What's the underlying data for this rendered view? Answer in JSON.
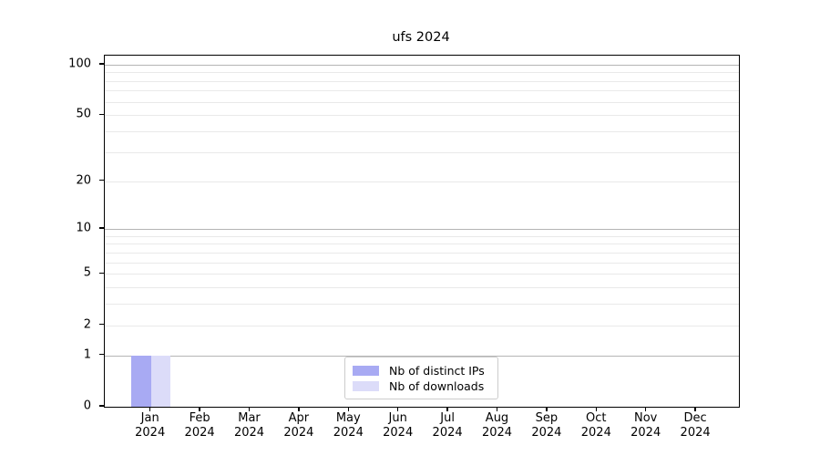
{
  "title": "ufs 2024",
  "chart_data": {
    "type": "bar",
    "title": "ufs 2024",
    "categories": [
      "Jan",
      "Feb",
      "Mar",
      "Apr",
      "May",
      "Jun",
      "Jul",
      "Aug",
      "Sep",
      "Oct",
      "Nov",
      "Dec"
    ],
    "x_sublabel": "2024",
    "series": [
      {
        "name": "Nb of distinct IPs",
        "color": "#a8aaf3",
        "values": [
          1,
          0,
          0,
          0,
          0,
          0,
          0,
          0,
          0,
          0,
          0,
          0
        ]
      },
      {
        "name": "Nb of downloads",
        "color": "#dcdcf9",
        "values": [
          1,
          0,
          0,
          0,
          0,
          0,
          0,
          0,
          0,
          0,
          0,
          0
        ]
      }
    ],
    "y_axis": {
      "scale": "log1p",
      "ticks": [
        0,
        1,
        2,
        5,
        10,
        20,
        50,
        100
      ],
      "top_value": 113,
      "major_gridlines": [
        1,
        10,
        100
      ],
      "minor_gridlines": [
        2,
        3,
        4,
        5,
        6,
        7,
        8,
        9,
        20,
        30,
        40,
        50,
        60,
        70,
        80,
        90
      ]
    },
    "legend": {
      "position": "lower center"
    },
    "grid": "horizontal only",
    "colors": {
      "major_grid": "#b5b5b5",
      "minor_grid": "#e9e9e9",
      "spine": "#000000"
    }
  }
}
